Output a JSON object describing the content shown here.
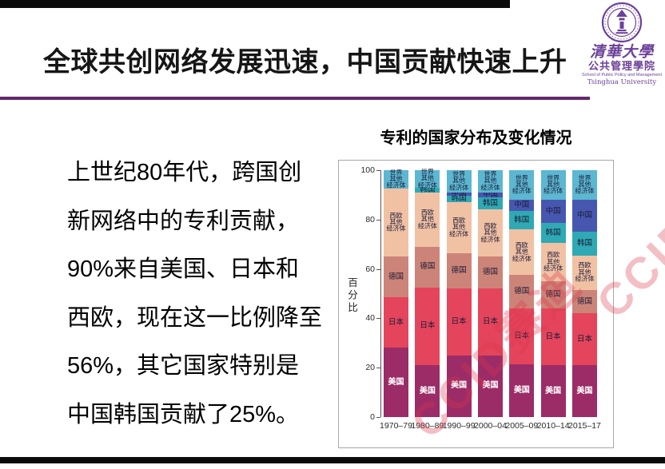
{
  "slide": {
    "title": "全球共创网络发展迅速，中国贡献快速上升",
    "body_lines": [
      "上世纪80年代，跨国创",
      "新网络中的专利贡献，",
      "90%来自美国、日本和",
      "西欧，现在这一比例降至",
      "56%，其它国家特别是",
      "中国韩国贡献了25%。"
    ]
  },
  "logo": {
    "cn_script": "清華大學",
    "cn_school": "公共管理學院",
    "en_line1": "School of Public Policy and Management",
    "en_line2": "Tsinghua University",
    "color": "#6C4199"
  },
  "watermark": {
    "text": "CCID赛迪",
    "color_rgba": "rgba(221,54,74,0.32)"
  },
  "accent_colors": {
    "title_rule_purple": "#63286D",
    "top_bottom_bar_black": "#0b0b0b"
  },
  "chart_data": {
    "type": "bar",
    "variant": "stacked-percentage",
    "title": "专利的国家分布及变化情况",
    "xlabel": "",
    "ylabel": "百分比",
    "ylim": [
      0,
      100
    ],
    "yticks": [
      0,
      20,
      40,
      60,
      80,
      100
    ],
    "grid": false,
    "legend": "labels-inside-segments",
    "categories": [
      "1970–79",
      "1980–89",
      "1990–99",
      "2000–04",
      "2005–09",
      "2010–14",
      "2015–17"
    ],
    "series": [
      {
        "name": "美国",
        "color": "#9B2C67",
        "label_lines": [
          "美国"
        ],
        "label_color": "#ffffff",
        "label_bold": true,
        "values": [
          28,
          21,
          25,
          25,
          21.5,
          21,
          21
        ]
      },
      {
        "name": "日本",
        "color": "#E4455C",
        "label_lines": [
          "日本"
        ],
        "values": [
          20.5,
          31.5,
          27,
          27,
          22.5,
          23,
          21
        ]
      },
      {
        "name": "德国",
        "color": "#CD8478",
        "label_lines": [
          "德国"
        ],
        "values": [
          16.5,
          16.5,
          14.5,
          13,
          13.5,
          11,
          9.5
        ]
      },
      {
        "name": "西欧其他经济体",
        "color": "#F1C1A4",
        "label_lines": [
          "西欧",
          "其他",
          "经济体"
        ],
        "values": [
          27.5,
          22,
          20.5,
          19,
          18.5,
          15.5,
          14
        ]
      },
      {
        "name": "韩国",
        "color": "#2FAAB4",
        "label_lines": [
          "韩国"
        ],
        "values": [
          0,
          2,
          2.5,
          5,
          7.5,
          8,
          9.5
        ]
      },
      {
        "name": "中国",
        "color": "#4757B0",
        "label_lines": [
          "中国"
        ],
        "values": [
          0,
          0,
          1.5,
          2,
          4.5,
          9.5,
          13
        ]
      },
      {
        "name": "世界其他经济体",
        "color": "#5CB7D1",
        "label_lines": [
          "世界",
          "其他",
          "经济体"
        ],
        "values": [
          7.5,
          7,
          9,
          9,
          12,
          12,
          12
        ]
      }
    ]
  }
}
